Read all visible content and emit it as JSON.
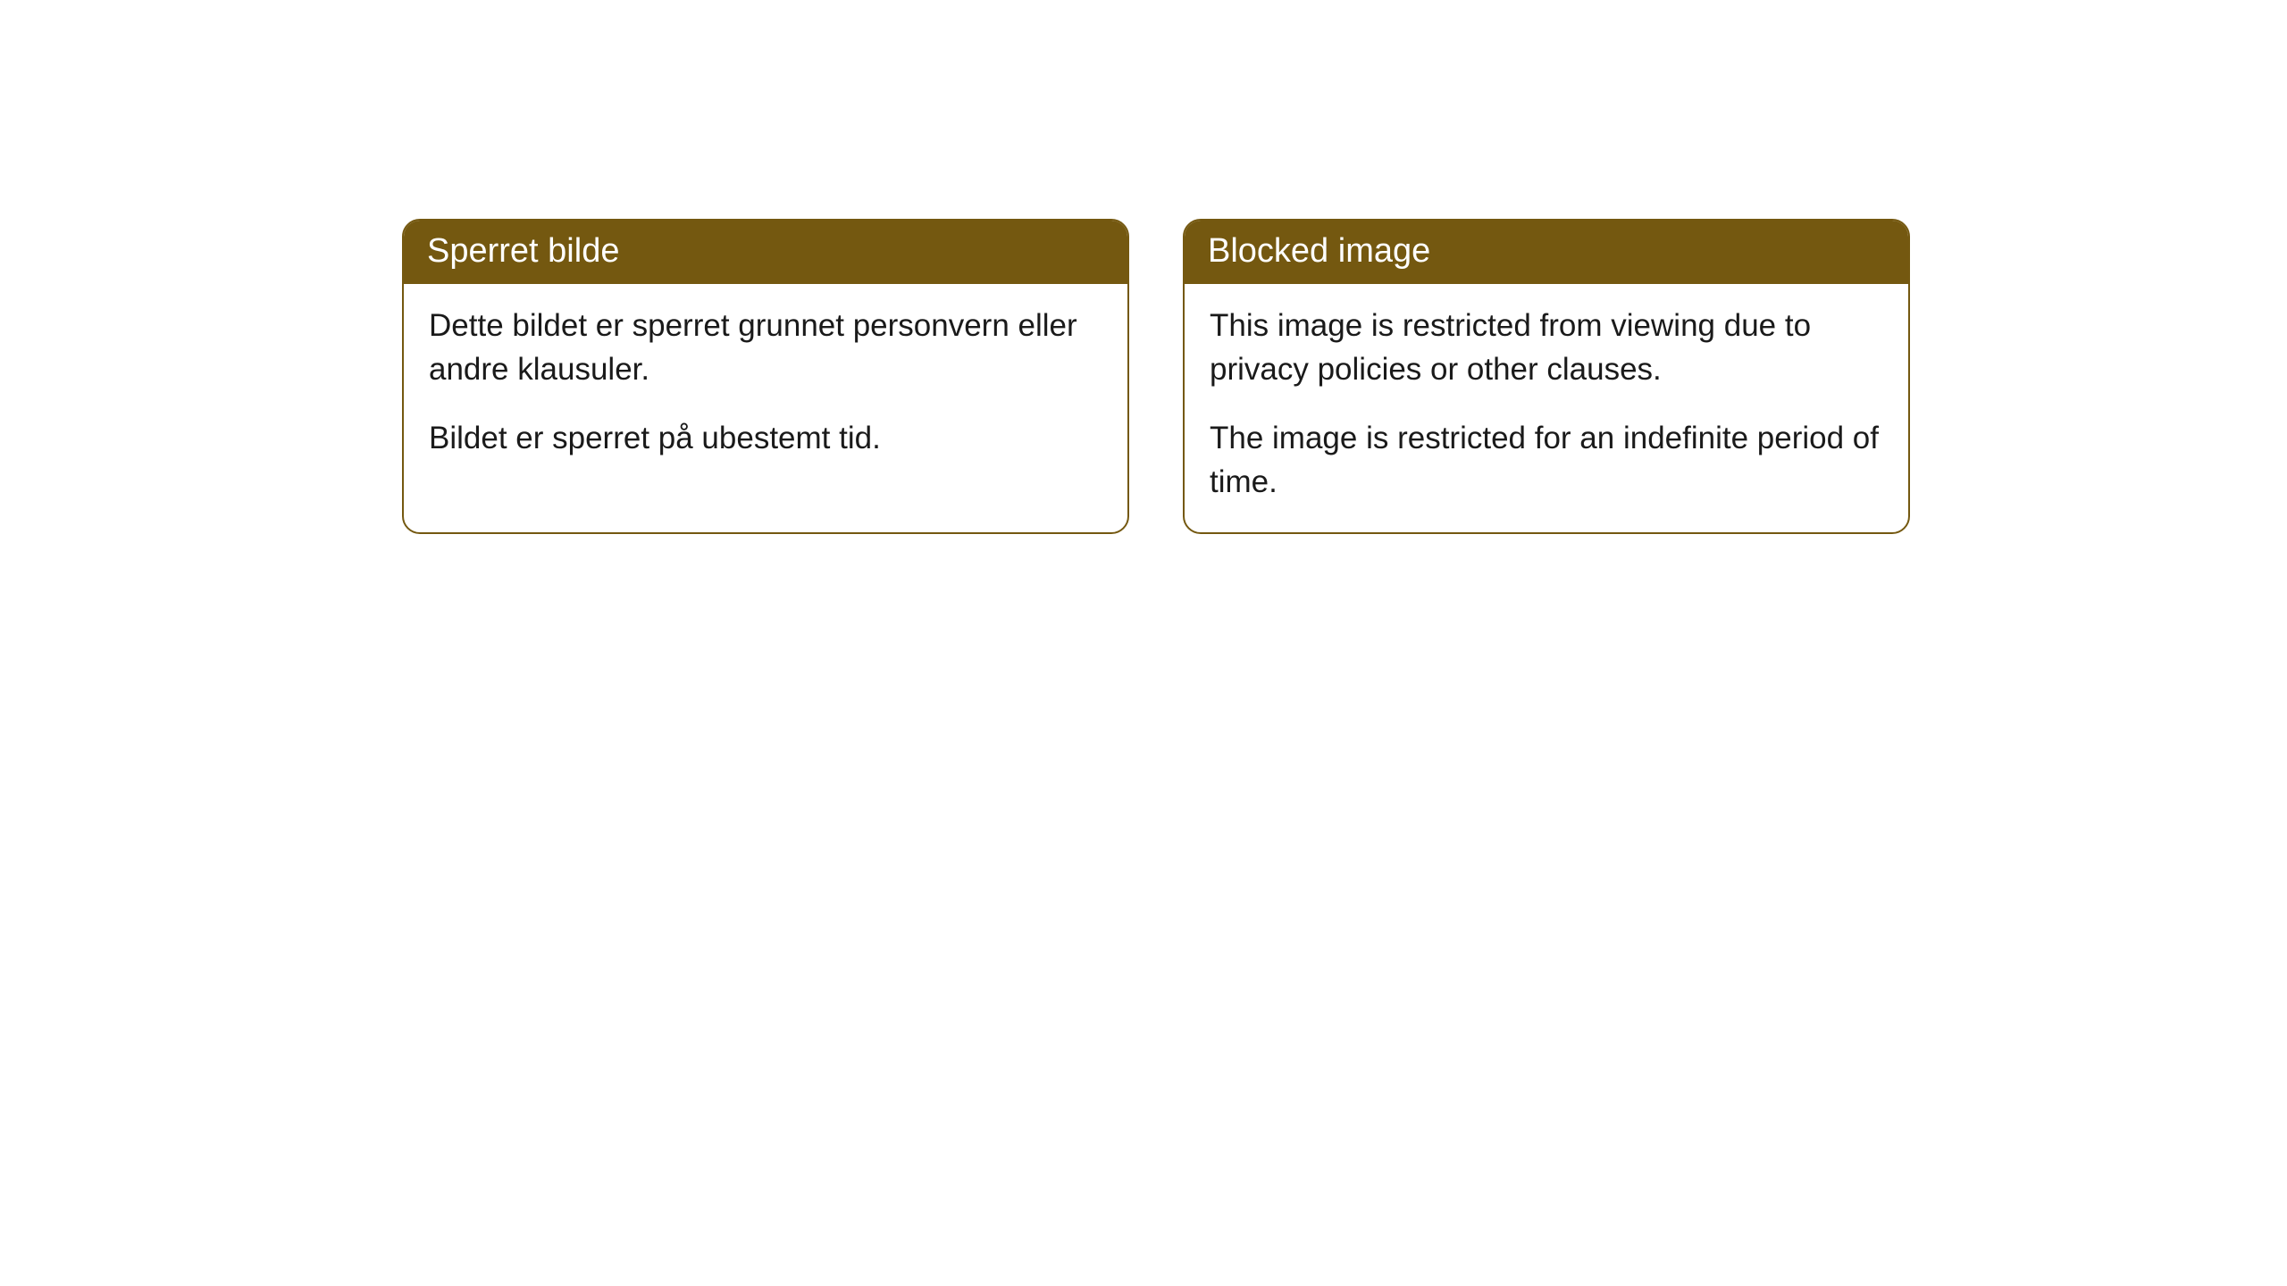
{
  "cards": [
    {
      "title": "Sperret bilde",
      "paragraph1": "Dette bildet er sperret grunnet personvern eller andre klausuler.",
      "paragraph2": "Bildet er sperret på ubestemt tid."
    },
    {
      "title": "Blocked image",
      "paragraph1": "This image is restricted from viewing due to privacy policies or other clauses.",
      "paragraph2": "The image is restricted for an indefinite period of time."
    }
  ],
  "style": {
    "header_background": "#745810",
    "header_text_color": "#ffffff",
    "border_color": "#745810",
    "body_background": "#ffffff",
    "body_text_color": "#1a1a1a",
    "border_radius": 20,
    "header_fontsize": 38,
    "body_fontsize": 35
  }
}
